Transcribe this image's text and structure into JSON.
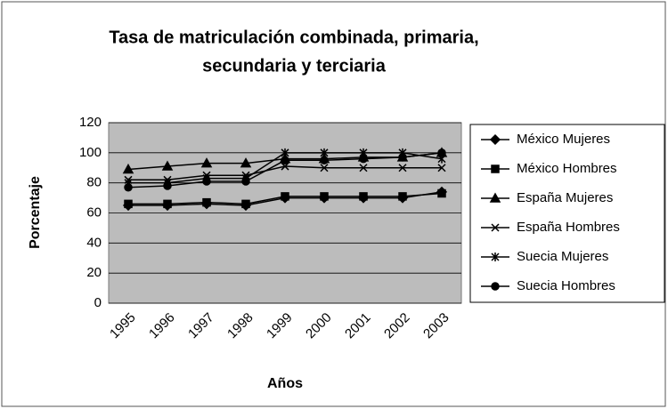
{
  "chart_data": {
    "type": "line",
    "title": "Tasa de matriculación combinada, primaria,",
    "subtitle": "secundaria y terciaria",
    "x_label": "Años",
    "y_label": "Porcentaje",
    "categories": [
      "1995",
      "1996",
      "1997",
      "1998",
      "1999",
      "2000",
      "2001",
      "2002",
      "2003"
    ],
    "series": [
      {
        "name": "México Mujeres",
        "color": "#000000",
        "marker": "diamond",
        "values": [
          65,
          65,
          66,
          65,
          70,
          70,
          70,
          70,
          74
        ]
      },
      {
        "name": "México Hombres",
        "color": "#000000",
        "marker": "square",
        "values": [
          66,
          66,
          67,
          66,
          71,
          71,
          71,
          71,
          73
        ]
      },
      {
        "name": "España Mujeres",
        "color": "#000000",
        "marker": "triangle",
        "values": [
          89,
          91,
          93,
          93,
          96,
          96,
          97,
          97,
          100
        ]
      },
      {
        "name": "España Hombres",
        "color": "#000000",
        "marker": "x",
        "values": [
          82,
          82,
          85,
          85,
          91,
          90,
          90,
          90,
          90
        ]
      },
      {
        "name": "Suecia Mujeres",
        "color": "#000000",
        "marker": "asterisk",
        "values": [
          80,
          80,
          83,
          83,
          100,
          100,
          100,
          100,
          96
        ]
      },
      {
        "name": "Suecia Hombres",
        "color": "#000000",
        "marker": "circle",
        "values": [
          77,
          78,
          81,
          81,
          95,
          95,
          96,
          97,
          100
        ]
      }
    ],
    "ylim": [
      0,
      120
    ],
    "yticks": [
      0,
      20,
      40,
      60,
      80,
      100,
      120
    ],
    "grid": true,
    "legend": "right"
  }
}
